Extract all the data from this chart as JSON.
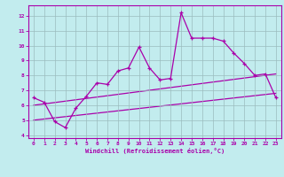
{
  "xlabel": "Windchill (Refroidissement éolien,°C)",
  "bg_color": "#c2ecee",
  "grid_color": "#9bbcbe",
  "line_color": "#aa00aa",
  "xlim": [
    -0.5,
    23.5
  ],
  "ylim": [
    3.8,
    12.7
  ],
  "xticks": [
    0,
    1,
    2,
    3,
    4,
    5,
    6,
    7,
    8,
    9,
    10,
    11,
    12,
    13,
    14,
    15,
    16,
    17,
    18,
    19,
    20,
    21,
    22,
    23
  ],
  "yticks": [
    4,
    5,
    6,
    7,
    8,
    9,
    10,
    11,
    12
  ],
  "series1_x": [
    0,
    1,
    2,
    3,
    4,
    5,
    6,
    7,
    8,
    9,
    10,
    11,
    12,
    13,
    14,
    15,
    16,
    17,
    18,
    19,
    20,
    21,
    22,
    23
  ],
  "series1_y": [
    6.5,
    6.2,
    4.9,
    4.5,
    5.8,
    6.6,
    7.5,
    7.4,
    8.3,
    8.5,
    9.9,
    8.5,
    7.7,
    7.8,
    12.2,
    10.5,
    10.5,
    10.5,
    10.3,
    9.5,
    8.8,
    8.0,
    8.1,
    6.5
  ],
  "series2_x": [
    0,
    23
  ],
  "series2_y": [
    6.0,
    8.1
  ],
  "series3_x": [
    0,
    23
  ],
  "series3_y": [
    5.0,
    6.8
  ]
}
